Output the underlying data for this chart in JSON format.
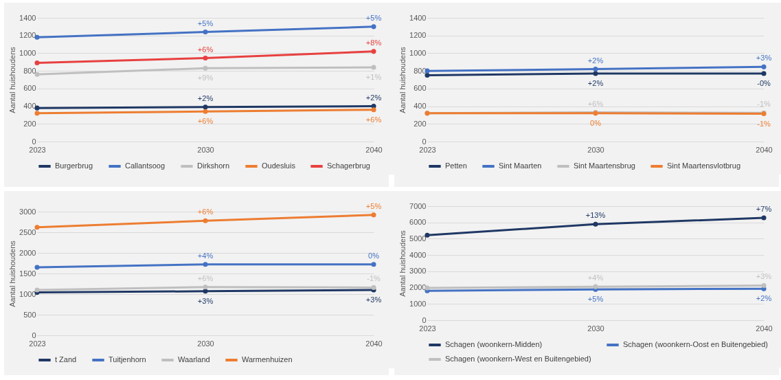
{
  "chart_data": [
    {
      "type": "line",
      "ylabel": "Aantal huishoudens",
      "categories": [
        "2023",
        "2030",
        "2040"
      ],
      "ylim": [
        0,
        1400
      ],
      "yticks": [
        0,
        200,
        400,
        600,
        800,
        1000,
        1200,
        1400
      ],
      "grid": "y",
      "legend": "bottom",
      "marker": "circle",
      "series": [
        {
          "name": "Burgerbrug",
          "color": "#1f3864",
          "values": [
            380,
            390,
            400
          ]
        },
        {
          "name": "Callantsoog",
          "color": "#4472c4",
          "values": [
            1180,
            1240,
            1300
          ]
        },
        {
          "name": "Dirkshorn",
          "color": "#bfbfbf",
          "values": [
            760,
            830,
            840
          ]
        },
        {
          "name": "Oudesluis",
          "color": "#ed7d31",
          "values": [
            320,
            340,
            360
          ]
        },
        {
          "name": "Schagerbrug",
          "color": "#e84040",
          "values": [
            890,
            945,
            1020
          ]
        }
      ],
      "annotations": [
        {
          "text": "+2%",
          "x": "2030",
          "y": 390
        },
        {
          "text": "+2%",
          "x": "2040",
          "y": 400
        },
        {
          "text": "+5%",
          "x": "2030",
          "y": 1240
        },
        {
          "text": "+5%",
          "x": "2040",
          "y": 1300
        },
        {
          "text": "+9%",
          "x": "2030",
          "y": 830
        },
        {
          "text": "+1%",
          "x": "2040",
          "y": 840
        },
        {
          "text": "+6%",
          "x": "2030",
          "y": 340
        },
        {
          "text": "+6%",
          "x": "2040",
          "y": 360
        },
        {
          "text": "+6%",
          "x": "2030",
          "y": 945
        },
        {
          "text": "+8%",
          "x": "2040",
          "y": 1020
        }
      ]
    },
    {
      "type": "line",
      "ylabel": "Aantal huishoudens",
      "categories": [
        "2023",
        "2030",
        "2040"
      ],
      "ylim": [
        0,
        1400
      ],
      "yticks": [
        0,
        200,
        400,
        600,
        800,
        1000,
        1200,
        1400
      ],
      "grid": "y",
      "legend": "bottom",
      "marker": "circle",
      "series": [
        {
          "name": "Petten",
          "color": "#1f3864",
          "values": [
            750,
            770,
            770
          ]
        },
        {
          "name": "Sint Maarten",
          "color": "#4472c4",
          "values": [
            800,
            820,
            845
          ]
        },
        {
          "name": "Sint Maartensbrug",
          "color": "#bfbfbf",
          "values": [
            320,
            330,
            325
          ]
        },
        {
          "name": "Sint Maartensvlotbrug",
          "color": "#ed7d31",
          "values": [
            320,
            320,
            315
          ]
        }
      ],
      "annotations": [
        {
          "text": "+2%",
          "x": "2030",
          "y": 770
        },
        {
          "text": "-0%",
          "x": "2040",
          "y": 770
        },
        {
          "text": "+2%",
          "x": "2030",
          "y": 820
        },
        {
          "text": "+3%",
          "x": "2040",
          "y": 845
        },
        {
          "text": "+6%",
          "x": "2030",
          "y": 330
        },
        {
          "text": "-1%",
          "x": "2040",
          "y": 325
        },
        {
          "text": "0%",
          "x": "2030",
          "y": 320
        },
        {
          "text": "-1%",
          "x": "2040",
          "y": 315
        }
      ]
    },
    {
      "type": "line",
      "ylabel": "Aantal huishoudens",
      "categories": [
        "2023",
        "2030",
        "2040"
      ],
      "ylim": [
        0,
        3000
      ],
      "yticks": [
        0,
        500,
        1000,
        1500,
        2000,
        2500,
        3000
      ],
      "grid": "y",
      "legend": "bottom",
      "marker": "circle",
      "series": [
        {
          "name": "t Zand",
          "color": "#1f3864",
          "values": [
            1040,
            1070,
            1100
          ]
        },
        {
          "name": "Tuitjenhorn",
          "color": "#4472c4",
          "values": [
            1650,
            1720,
            1720
          ]
        },
        {
          "name": "Waarland",
          "color": "#bfbfbf",
          "values": [
            1100,
            1170,
            1160
          ]
        },
        {
          "name": "Warmenhuizen",
          "color": "#ed7d31",
          "values": [
            2620,
            2780,
            2920
          ]
        }
      ],
      "annotations": [
        {
          "text": "+3%",
          "x": "2030",
          "y": 1070
        },
        {
          "text": "+3%",
          "x": "2040",
          "y": 1100
        },
        {
          "text": "+4%",
          "x": "2030",
          "y": 1720
        },
        {
          "text": "0%",
          "x": "2040",
          "y": 1720
        },
        {
          "text": "+6%",
          "x": "2030",
          "y": 1170
        },
        {
          "text": "-1%",
          "x": "2040",
          "y": 1160
        },
        {
          "text": "+6%",
          "x": "2030",
          "y": 2780
        },
        {
          "text": "+5%",
          "x": "2040",
          "y": 2920
        }
      ]
    },
    {
      "type": "line",
      "ylabel": "Aantal huishoudens",
      "categories": [
        "2023",
        "2030",
        "2040"
      ],
      "ylim": [
        0,
        7000
      ],
      "yticks": [
        0,
        1000,
        2000,
        3000,
        4000,
        5000,
        6000,
        7000
      ],
      "grid": "y",
      "legend": "bottom",
      "marker": "circle",
      "series": [
        {
          "name": "Schagen (woonkern-Midden)",
          "color": "#1f3864",
          "values": [
            5220,
            5890,
            6280
          ]
        },
        {
          "name": "Schagen (woonkern-Oost en Buitengebied)",
          "color": "#4472c4",
          "values": [
            1800,
            1890,
            1930
          ]
        },
        {
          "name": "Schagen (woonkern-West en Buitengebied)",
          "color": "#bfbfbf",
          "values": [
            1980,
            2060,
            2130
          ]
        }
      ],
      "annotations": [
        {
          "text": "+13%",
          "x": "2030",
          "y": 5890
        },
        {
          "text": "+7%",
          "x": "2040",
          "y": 6280
        },
        {
          "text": "+5%",
          "x": "2030",
          "y": 1890
        },
        {
          "text": "+2%",
          "x": "2040",
          "y": 1930
        },
        {
          "text": "+4%",
          "x": "2030",
          "y": 2060
        },
        {
          "text": "+3%",
          "x": "2040",
          "y": 2130
        }
      ]
    }
  ]
}
